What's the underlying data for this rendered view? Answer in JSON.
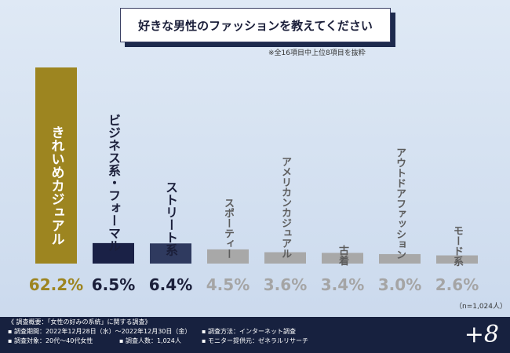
{
  "title": "好きな男性のファッションを教えてください",
  "note": "※全16項目中上位8項目を抜粋",
  "sample": "（n=1,024人）",
  "colors": {
    "gold": "#9d8520",
    "navy": "#1a2146",
    "slate": "#2f3a5f",
    "gray": "#a8a8a8",
    "value_dark": "#1b1f3a",
    "value_gold": "#9d8520",
    "value_gray": "#a5a5a5"
  },
  "chart_data": {
    "type": "bar",
    "categories": [
      "きれいめカジュアル",
      "ビジネス系・フォーマル",
      "ストリート系",
      "スポーティー",
      "アメリカンカジュアル",
      "古着",
      "アウトドアファッション",
      "モード系"
    ],
    "values": [
      62.2,
      6.5,
      6.4,
      4.5,
      3.6,
      3.4,
      3.0,
      2.6
    ],
    "value_labels": [
      "62.2%",
      "6.5%",
      "6.4%",
      "4.5%",
      "3.6%",
      "3.4%",
      "3.0%",
      "2.6%"
    ],
    "unit": "%",
    "title": "好きな男性のファッションを教えてください",
    "xlabel": "",
    "ylabel": "",
    "ylim": [
      0,
      62.2
    ]
  },
  "footer": {
    "heading": "《 調査概要：「女性の好みの系統」に関する調査》",
    "period": "▪ 調査期間：2022年12月28日（水）〜2022年12月30日（金）",
    "target": "▪ 調査対象：20代〜40代女性",
    "count": "▪ 調査人数：1,024人",
    "method": "▪ 調査方法：インターネット調査",
    "provider": "▪ モニター提供元：ゼネラルリサーチ",
    "brand": "+8"
  }
}
